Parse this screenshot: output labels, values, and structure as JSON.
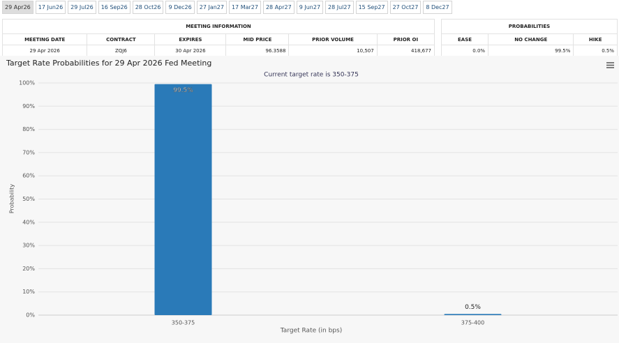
{
  "tabs": [
    "29 Apr26",
    "17 Jun26",
    "29 Jul26",
    "16 Sep26",
    "28 Oct26",
    "9 Dec26",
    "27 Jan27",
    "17 Mar27",
    "28 Apr27",
    "9 Jun27",
    "28 Jul27",
    "15 Sep27",
    "27 Oct27",
    "8 Dec27"
  ],
  "meeting_info": {
    "title": "MEETING INFORMATION",
    "headers": [
      "MEETING DATE",
      "CONTRACT",
      "EXPIRES",
      "MID PRICE",
      "PRIOR VOLUME",
      "PRIOR OI"
    ],
    "row": [
      "29 Apr 2026",
      "ZQJ6",
      "30 Apr 2026",
      "96.3588",
      "10,507",
      "418,677"
    ]
  },
  "probabilities": {
    "title": "PROBABILITIES",
    "headers": [
      "EASE",
      "NO CHANGE",
      "HIKE"
    ],
    "row": [
      "0.0%",
      "99.5%",
      "0.5%"
    ]
  },
  "chart_data": {
    "type": "bar",
    "title": "Target Rate Probabilities for 29 Apr 2026 Fed Meeting",
    "subtitle": "Current target rate is 350-375",
    "categories": [
      "350-375",
      "375-400"
    ],
    "values": [
      99.5,
      0.5
    ],
    "value_labels": [
      "99.5%",
      "0.5%"
    ],
    "color": "#2a7ab8",
    "x_label": "Target Rate (in bps)",
    "y_label": "Probability",
    "ylim": [
      0,
      100
    ],
    "yticks": [
      {
        "value": 0,
        "label": "0%"
      },
      {
        "value": 10,
        "label": "10%"
      },
      {
        "value": 20,
        "label": "20%"
      },
      {
        "value": 30,
        "label": "30%"
      },
      {
        "value": 40,
        "label": "40%"
      },
      {
        "value": 50,
        "label": "50%"
      },
      {
        "value": 60,
        "label": "60%"
      },
      {
        "value": 70,
        "label": "70%"
      },
      {
        "value": 80,
        "label": "80%"
      },
      {
        "value": 90,
        "label": "90%"
      },
      {
        "value": 100,
        "label": "100%"
      }
    ],
    "grid": true
  }
}
